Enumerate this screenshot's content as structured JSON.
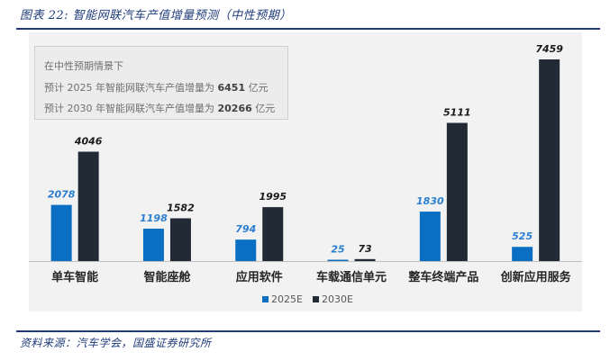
{
  "figure": {
    "title": "图表 22:  智能网联汽车产值增量预测（中性预期）",
    "source": "资料来源：汽车学会，国盛证券研究所"
  },
  "note": {
    "line1": "在中性预期情景下",
    "line2_prefix": "预计 2025 年智能网联汽车产值增量为 ",
    "line2_value": "6451",
    "line2_suffix": " 亿元",
    "line3_prefix": "预计 2030 年智能网联汽车产值增量为 ",
    "line3_value": "20266",
    "line3_suffix": " 亿元"
  },
  "colors": {
    "s2025": "#0a6fc2",
    "s2030": "#222a36",
    "label2025": "#2a7fd0",
    "label2030": "#1a1a1a"
  },
  "chart_data": {
    "type": "bar",
    "categories": [
      "单车智能",
      "智能座舱",
      "应用软件",
      "车载通信单元",
      "整车终端产品",
      "创新应用服务"
    ],
    "series": [
      {
        "name": "2025E",
        "values": [
          2078,
          1198,
          794,
          25,
          1830,
          525
        ]
      },
      {
        "name": "2030E",
        "values": [
          4046,
          1582,
          1995,
          73,
          5111,
          7459
        ]
      }
    ],
    "ylim": [
      0,
      7459
    ],
    "grid": false,
    "legend": "bottom"
  }
}
